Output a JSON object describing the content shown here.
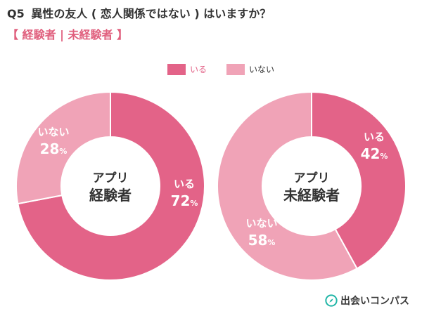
{
  "header": {
    "question_no": "Q5",
    "question_text": "異性の友人 ( 恋人関係ではない ) はいますか？",
    "subtitle": "【 経験者 | 未経験者 】"
  },
  "legend": {
    "items": [
      {
        "label": "いる",
        "color": "#e36388"
      },
      {
        "label": "いない",
        "color": "#f0a3b7"
      }
    ]
  },
  "chart_data": [
    {
      "type": "pie",
      "center_label": [
        "アプリ",
        "経験者"
      ],
      "slices": [
        {
          "label": "いる",
          "value": 72,
          "color": "#e36388"
        },
        {
          "label": "いない",
          "value": 28,
          "color": "#f0a3b7"
        }
      ]
    },
    {
      "type": "pie",
      "center_label": [
        "アプリ",
        "未経験者"
      ],
      "slices": [
        {
          "label": "いる",
          "value": 42,
          "color": "#e36388"
        },
        {
          "label": "いない",
          "value": 58,
          "color": "#f0a3b7"
        }
      ]
    }
  ],
  "brand": {
    "name": "出会いコンパス",
    "icon": "compass-icon",
    "color": "#1fb5a6"
  }
}
